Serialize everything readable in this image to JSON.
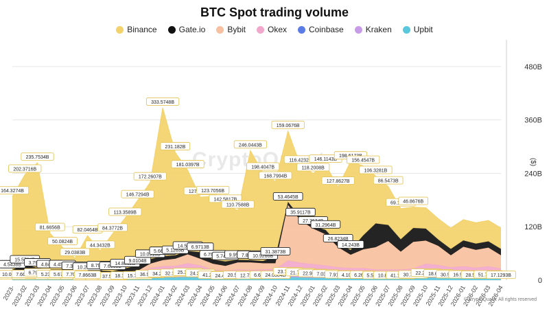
{
  "title": "BTC Spot trading volume",
  "footer": "© CryptoQuant. All rights reserved",
  "watermark": "CryptoQuant",
  "legend": [
    {
      "name": "Binance",
      "color": "#f3d26b"
    },
    {
      "name": "Gate.io",
      "color": "#111111"
    },
    {
      "name": "Bybit",
      "color": "#f7c0a0"
    },
    {
      "name": "Okex",
      "color": "#f2a8cc"
    },
    {
      "name": "Coinbase",
      "color": "#5b7be6"
    },
    {
      "name": "Kraken",
      "color": "#c79be8"
    },
    {
      "name": "Upbit",
      "color": "#59c7dc"
    }
  ],
  "chart_data": {
    "type": "area",
    "title": "BTC Spot trading volume",
    "y_axis_side": "right",
    "y_unit": "($)",
    "ylim": [
      0,
      540
    ],
    "yticks": [
      0,
      120,
      240,
      360,
      480
    ],
    "ytick_labels": [
      "0",
      "120B",
      "240B",
      "360B",
      "480B"
    ],
    "x": [
      "2023-01",
      "2023-02",
      "2023-03",
      "2023-04",
      "2023-05",
      "2023-06",
      "2023-07",
      "2023-08",
      "2023-09",
      "2023-10",
      "2023-11",
      "2023-12",
      "2024-01",
      "2024-02",
      "2024-03",
      "2024-04",
      "2024-05",
      "2024-06",
      "2024-07",
      "2024-08",
      "2024-09",
      "2024-10",
      "2024-11",
      "2024-12",
      "2025-01",
      "2025-02",
      "2025-03",
      "2025-04",
      "2025-05",
      "2025-06",
      "2025-07",
      "2025-08",
      "2025-09",
      "2025-10",
      "2025-11",
      "2025-12",
      "2026-01",
      "2026-02",
      "2026-03",
      "2026-04"
    ],
    "x_tick_labels": [
      "2023-",
      "2023-02",
      "2023-03",
      "2023-04",
      "2023-05",
      "2023-06",
      "2023-07",
      "2023-08",
      "2023-09",
      "2023-10",
      "2023-11",
      "2023-12",
      "2024-01",
      "2024-02",
      "2024-03",
      "2024-04",
      "2024-05",
      "2024-06",
      "2024-07",
      "2024-08",
      "2024-09",
      "2024-10",
      "2024-11",
      "2024-12",
      "2025-01",
      "2025-02",
      "2025-03",
      "2025-04",
      "2025-05",
      "2025-06",
      "2025-07",
      "2025-08",
      "2025-09",
      "2025-10",
      "2025-11",
      "2025-12",
      "2026-01",
      "2026-02",
      "2026-03",
      "2026-04"
    ],
    "series": [
      {
        "name": "Upbit",
        "color": "#59c7dc",
        "values": [
          4,
          4,
          5,
          4,
          4,
          4,
          3,
          3,
          3,
          4,
          4,
          5,
          6,
          6,
          7,
          6,
          5,
          4,
          4,
          4,
          4,
          4,
          7,
          6,
          5,
          5,
          4,
          4,
          4,
          4,
          4,
          4,
          5,
          6,
          5,
          5,
          4,
          4,
          4,
          4
        ]
      },
      {
        "name": "Kraken",
        "color": "#c79be8",
        "values": [
          5,
          5,
          6,
          5,
          5,
          5,
          4,
          4,
          4,
          5,
          5,
          6,
          6,
          7,
          7,
          6,
          5,
          5,
          5,
          5,
          5,
          5,
          7,
          7,
          6,
          6,
          5,
          5,
          5,
          5,
          5,
          5,
          5,
          6,
          6,
          5,
          5,
          5,
          5,
          5
        ]
      },
      {
        "name": "Coinbase",
        "color": "#5b7be6",
        "values": [
          3,
          3,
          4,
          3,
          3,
          3,
          3,
          3,
          3,
          3,
          4,
          6,
          7,
          7,
          9,
          8,
          4,
          4,
          6,
          5,
          6,
          6,
          12,
          10,
          10,
          8,
          8,
          7,
          7,
          5,
          5,
          5,
          6,
          10,
          9,
          7,
          8,
          7,
          8,
          6
        ]
      },
      {
        "name": "Okex",
        "color": "#f2a8cc",
        "values": [
          4,
          4,
          5,
          4,
          4,
          4,
          4,
          4,
          4,
          4,
          5,
          10,
          12,
          12,
          15,
          13,
          10,
          8,
          9,
          9,
          9,
          10,
          18,
          16,
          15,
          14,
          12,
          11,
          11,
          10,
          10,
          10,
          10,
          15,
          14,
          12,
          14,
          12,
          14,
          11
        ]
      },
      {
        "name": "Bybit",
        "color": "#f7c0a0",
        "values": [
          3,
          3,
          4,
          3,
          3,
          3,
          3,
          3,
          3,
          3,
          3,
          10,
          14,
          16,
          20,
          15,
          13,
          11,
          16,
          17,
          14,
          13,
          125,
          95,
          80,
          70,
          45,
          30,
          42,
          50,
          64,
          40,
          60,
          52,
          43,
          27,
          44,
          40,
          42,
          30
        ]
      },
      {
        "name": "Gate.io",
        "color": "#111111",
        "values": [
          4.5438,
          15.5784,
          3.7904,
          4.8478,
          4.8478,
          1.1582,
          1.0157,
          4.4594,
          3,
          7.3599,
          11.7062,
          10.2554,
          8.7975,
          8,
          7.6365,
          14.8862,
          9.0104,
          10.0918,
          5.6604,
          5.1263,
          5.1263,
          14.5941,
          6.9713,
          6.7908,
          5.7478,
          9.9537,
          7.8872,
          10.9266,
          31.3873,
          53.4645,
          35.9117,
          27.7674,
          31.2964,
          26.8234,
          14.243,
          14.243,
          14.243,
          14.243,
          14.243,
          14.243
        ]
      },
      {
        "name": "Binance",
        "color": "#f3d26b",
        "values": [
          164.3274,
          202.3716,
          235.7534,
          81.6656,
          50.0824,
          29.0383,
          82.0464,
          44.3432,
          84.3772,
          113.3589,
          146.7294,
          172.2607,
          333.5748,
          231.182,
          181.0397,
          123.7056,
          142.5817,
          127.1417,
          110.7588,
          246.0443,
          198.4047,
          168.7994,
          159.0676,
          116.4232,
          118.2008,
          146.1143,
          127.8627,
          198.6173,
          156.4547,
          106.3281,
          86.5473,
          69.1668,
          46.8676,
          46.8676,
          46.8676,
          46.8676,
          46.8676,
          46.8676,
          46.8676,
          46.8676
        ]
      }
    ],
    "data_labels": [
      "164.3274B",
      "202.3716B",
      "235.7534B",
      "81.6656B",
      "50.0824B",
      "29.0383B",
      "82.0464B",
      "44.3432B",
      "84.3772B",
      "113.3589B",
      "146.7294B",
      "172.2607B",
      "333.5748B",
      "231.182B",
      "181.0397B",
      "127.1417B",
      "123.7056B",
      "142.5817B",
      "110.7588B",
      "246.0443B",
      "198.4047B",
      "168.7994B",
      "159.0676B",
      "116.4232B",
      "118.2008B",
      "146.1143B",
      "127.8627B",
      "198.6173B",
      "156.4547B",
      "106.3281B",
      "86.5473B",
      "69.1668B",
      "46.8676B",
      "4.5438B",
      "15.5784B",
      "3.7904B",
      "4.8478B",
      "4.4594B",
      "7.3599B",
      "10.2554B",
      "8.7975B",
      "7.6365B",
      "14.8862B",
      "9.0104B",
      "10.0918B",
      "5.6604B",
      "5.1263B",
      "14.5941B",
      "6.9713B",
      "6.7908B",
      "5.7478B",
      "9.9537B",
      "7.8872B",
      "10.9266B",
      "31.3873B",
      "53.4645B",
      "35.9117B",
      "27.7674B",
      "31.2964B",
      "26.8234B",
      "14.243B",
      "209.4732M",
      "1.1582B",
      "1.0157B",
      "11.7062B",
      "17.0686B",
      "23.1876B",
      "44.6426B",
      "34.4958B",
      "37.5238B",
      "18.1954B",
      "15.7017B",
      "36.9973B",
      "34.2313B",
      "32.1577B",
      "25.3409B",
      "24.3718B",
      "41.2005B",
      "24.4161B",
      "20.5398B",
      "12.7374B",
      "6.6659B",
      "24.0304B",
      "23.7685B",
      "21.7708B",
      "22.9249B",
      "7.0305B",
      "7.9192B",
      "4.1019B",
      "6.2672B",
      "5.5024B",
      "10.8635B",
      "41.1451B",
      "30.7011B",
      "22.2142B",
      "18.6511B",
      "30.5319B",
      "16.5229B",
      "28.5252B",
      "51.7553B",
      "17.1293B",
      "10.0096B",
      "7.6688B",
      "6.7968B",
      "5.2344B",
      "5.6793B",
      "7.7005B",
      "7.8663B"
    ]
  }
}
